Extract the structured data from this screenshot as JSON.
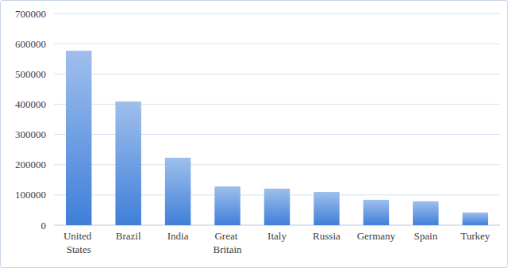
{
  "chart_data": {
    "type": "bar",
    "categories": [
      "United States",
      "Brazil",
      "India",
      "Great Britain",
      "Italy",
      "Russia",
      "Germany",
      "Spain",
      "Turkey"
    ],
    "values": [
      577000,
      409000,
      223000,
      128000,
      121000,
      110000,
      84000,
      79000,
      42000
    ],
    "color": "#3f7fd9",
    "ylim": [
      0,
      700000
    ],
    "yticks": [
      0,
      100000,
      200000,
      300000,
      400000,
      500000,
      600000,
      700000
    ],
    "grid": true
  }
}
